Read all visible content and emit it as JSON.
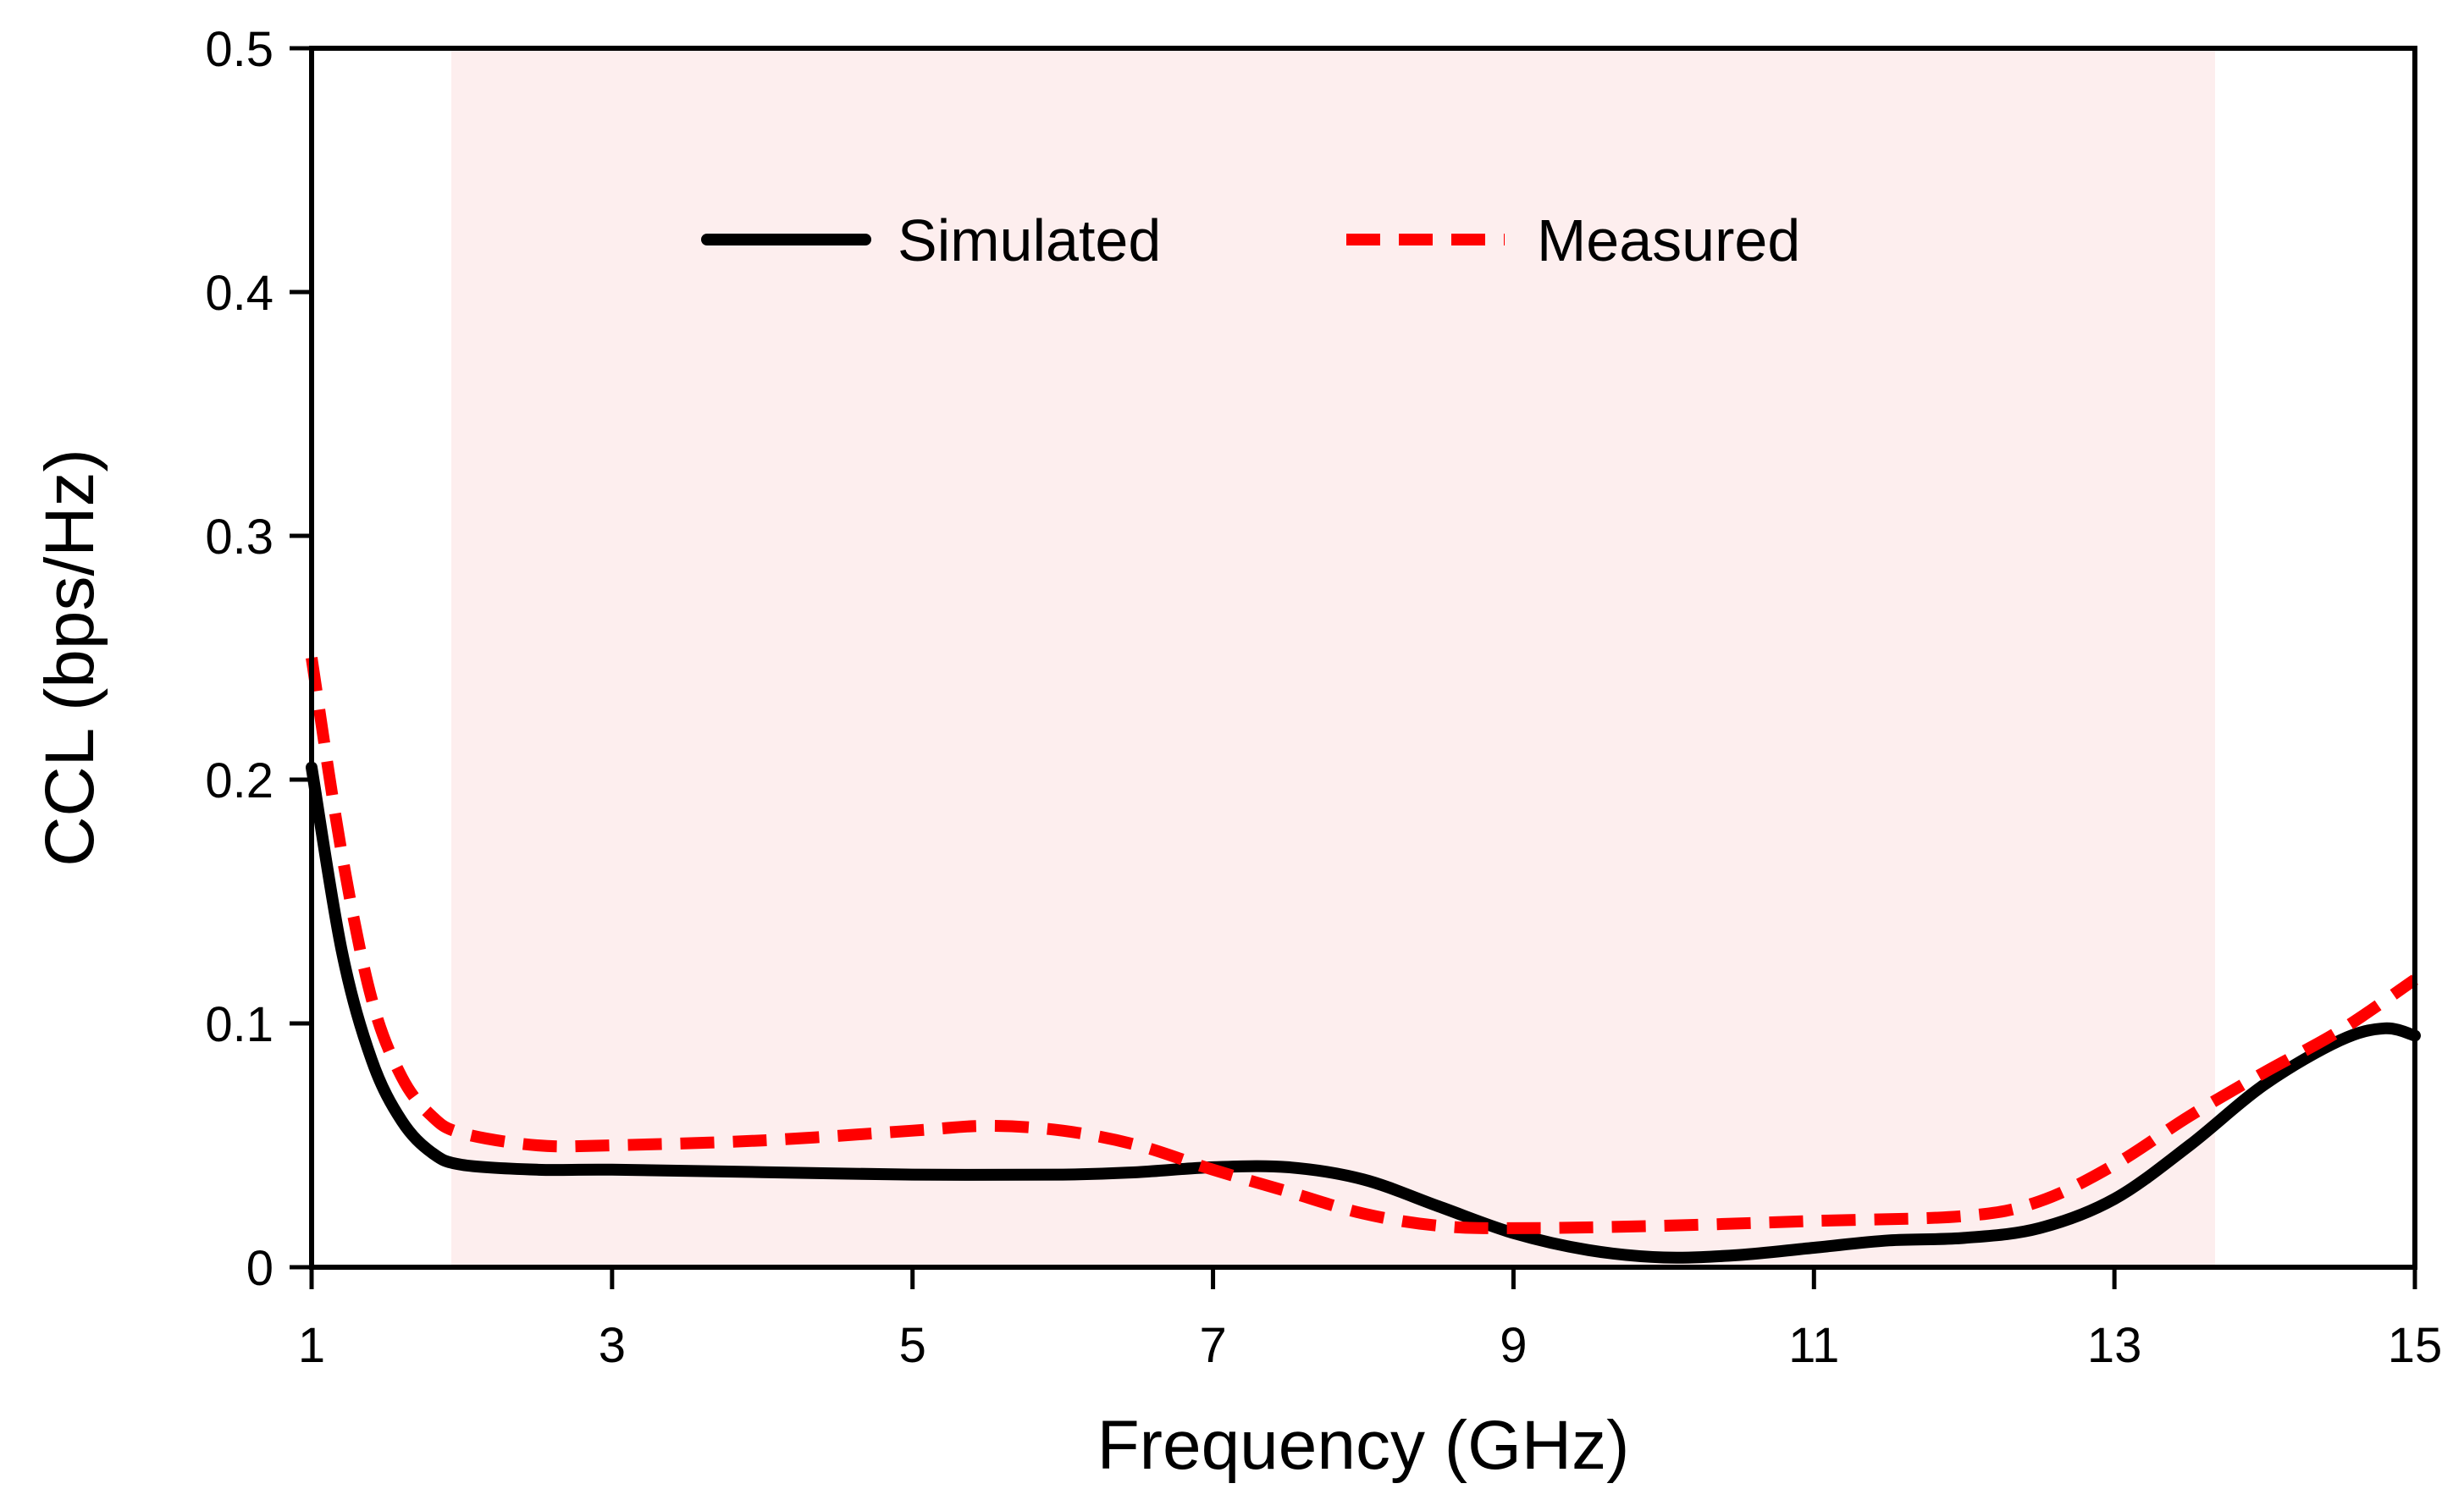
{
  "chart_data": {
    "type": "line",
    "title": "",
    "xlabel": "Frequency (GHz)",
    "ylabel": "CCL (bps/Hz)",
    "xlim": [
      1,
      15
    ],
    "ylim": [
      0,
      0.5
    ],
    "x_ticks": [
      1,
      3,
      5,
      7,
      9,
      11,
      13,
      15
    ],
    "y_ticks": [
      0,
      0.1,
      0.2,
      0.3,
      0.4,
      0.5
    ],
    "x_tick_labels": [
      "1",
      "3",
      "5",
      "7",
      "9",
      "11",
      "13",
      "15"
    ],
    "y_tick_labels": [
      "0",
      "0.1",
      "0.2",
      "0.3",
      "0.4",
      "0.5"
    ],
    "grid": false,
    "legend_position": "top-center",
    "shaded_band": {
      "x_start": 1.93,
      "x_end": 13.67,
      "color": "#fdeeee"
    },
    "series": [
      {
        "name": "Simulated",
        "color": "#000000",
        "style": "solid",
        "points": [
          [
            1.0,
            0.205
          ],
          [
            1.2,
            0.13
          ],
          [
            1.4,
            0.085
          ],
          [
            1.6,
            0.06
          ],
          [
            1.8,
            0.047
          ],
          [
            2.0,
            0.042
          ],
          [
            2.5,
            0.04
          ],
          [
            3.0,
            0.04
          ],
          [
            4.0,
            0.039
          ],
          [
            5.0,
            0.038
          ],
          [
            6.0,
            0.038
          ],
          [
            6.5,
            0.039
          ],
          [
            7.0,
            0.041
          ],
          [
            7.5,
            0.041
          ],
          [
            8.0,
            0.036
          ],
          [
            8.5,
            0.025
          ],
          [
            9.0,
            0.014
          ],
          [
            9.5,
            0.007
          ],
          [
            10.0,
            0.004
          ],
          [
            10.5,
            0.005
          ],
          [
            11.0,
            0.008
          ],
          [
            11.5,
            0.011
          ],
          [
            12.0,
            0.012
          ],
          [
            12.5,
            0.016
          ],
          [
            13.0,
            0.028
          ],
          [
            13.5,
            0.05
          ],
          [
            14.0,
            0.075
          ],
          [
            14.5,
            0.093
          ],
          [
            14.8,
            0.098
          ],
          [
            15.0,
            0.095
          ]
        ]
      },
      {
        "name": "Measured",
        "color": "#ff0000",
        "style": "dashed",
        "points": [
          [
            1.0,
            0.25
          ],
          [
            1.2,
            0.17
          ],
          [
            1.4,
            0.11
          ],
          [
            1.6,
            0.078
          ],
          [
            1.8,
            0.062
          ],
          [
            2.0,
            0.055
          ],
          [
            2.5,
            0.05
          ],
          [
            3.0,
            0.05
          ],
          [
            4.0,
            0.052
          ],
          [
            5.0,
            0.056
          ],
          [
            5.5,
            0.058
          ],
          [
            6.0,
            0.056
          ],
          [
            6.5,
            0.05
          ],
          [
            7.0,
            0.04
          ],
          [
            7.5,
            0.031
          ],
          [
            8.0,
            0.022
          ],
          [
            8.5,
            0.017
          ],
          [
            9.0,
            0.016
          ],
          [
            10.0,
            0.017
          ],
          [
            11.0,
            0.019
          ],
          [
            12.0,
            0.021
          ],
          [
            12.5,
            0.027
          ],
          [
            13.0,
            0.042
          ],
          [
            13.5,
            0.062
          ],
          [
            14.0,
            0.08
          ],
          [
            14.5,
            0.097
          ],
          [
            15.0,
            0.118
          ]
        ]
      }
    ]
  }
}
